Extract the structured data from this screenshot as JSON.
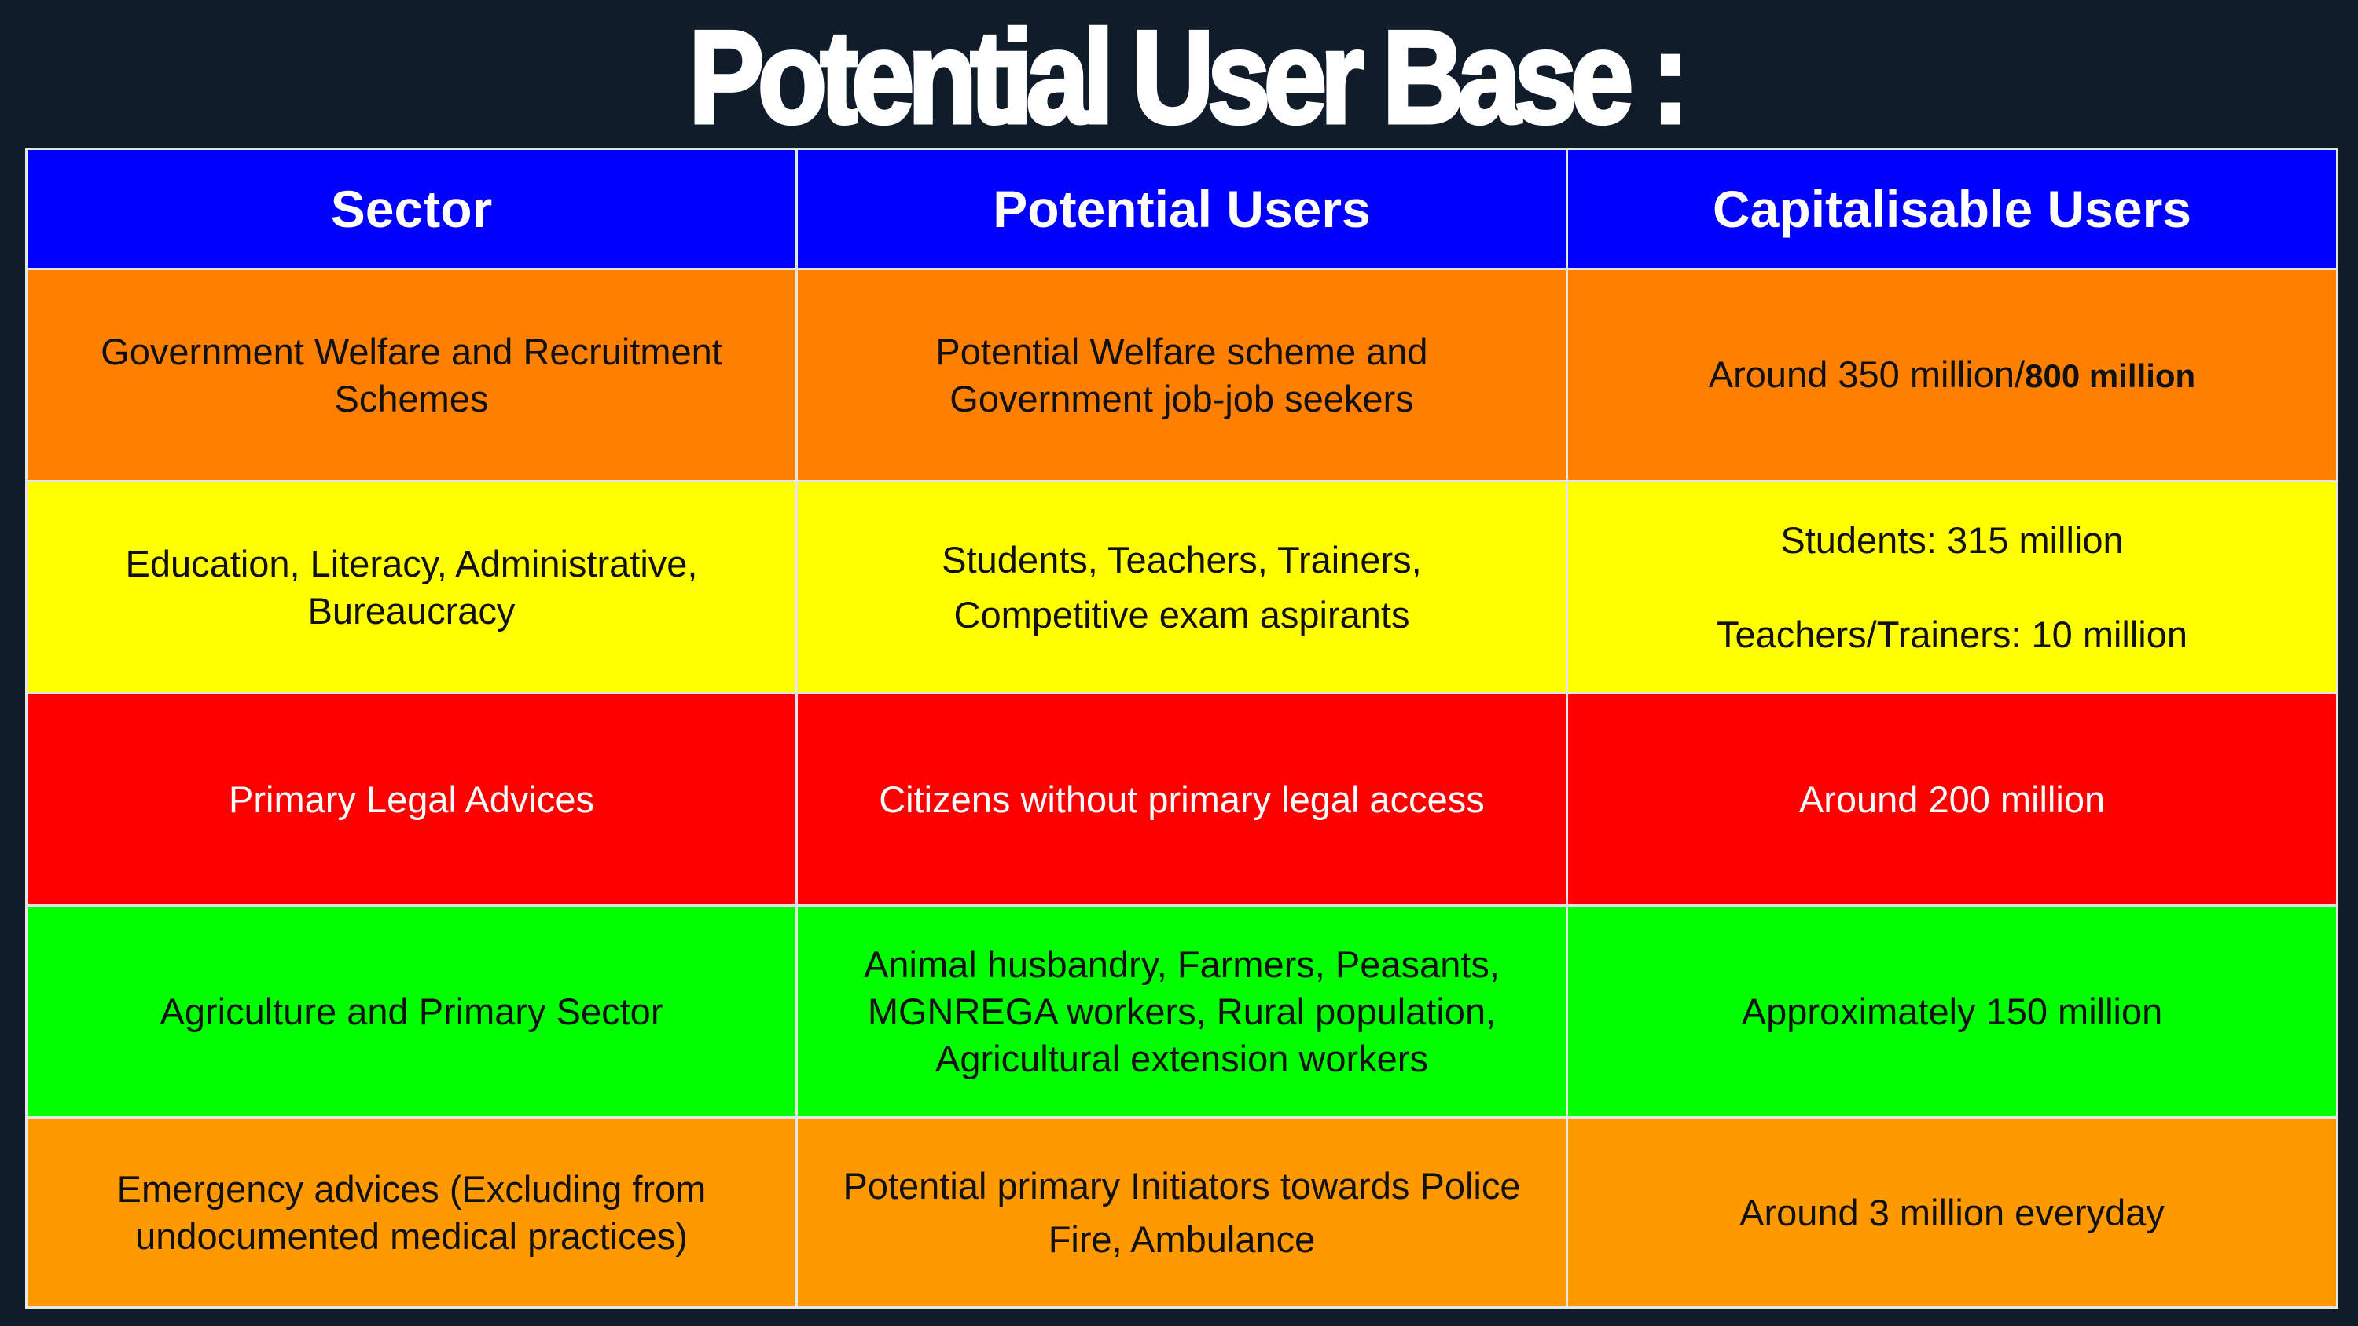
{
  "title": "Potential User Base :",
  "table": {
    "headers": [
      "Sector",
      "Potential Users",
      "Capitalisable Users"
    ],
    "colors": {
      "header_bg": "#0000ff",
      "row1_bg": "#ff8000",
      "row2_bg": "#ffff00",
      "row3_bg": "#ff0000",
      "row4_bg": "#00ff00",
      "row5_bg": "#ff9900",
      "dark_text": "#111111",
      "light_text": "#ffffff"
    },
    "rows": [
      {
        "sector": "Government Welfare and Recruitment Schemes",
        "users": "Potential Welfare scheme and Government job-job seekers",
        "capitalisable_prefix": "Around 350 million/",
        "capitalisable_bold": "800 million"
      },
      {
        "sector": "Education, Literacy, Administrative, Bureaucracy",
        "users": "Students, Teachers, Trainers, Competitive exam aspirants",
        "capitalisable_line1": "Students: 315 million",
        "capitalisable_line2": "Teachers/Trainers: 10 million"
      },
      {
        "sector": "Primary Legal Advices",
        "users": "Citizens without primary legal access",
        "capitalisable": "Around 200 million"
      },
      {
        "sector": "Agriculture and Primary Sector",
        "users": "Animal husbandry, Farmers, Peasants, MGNREGA workers, Rural population, Agricultural extension workers",
        "capitalisable": "Approximately 150 million"
      },
      {
        "sector": "Emergency advices (Excluding from undocumented medical practices)",
        "users": "Potential primary Initiators towards Police Fire, Ambulance",
        "capitalisable": "Around 3 million everyday"
      }
    ]
  }
}
